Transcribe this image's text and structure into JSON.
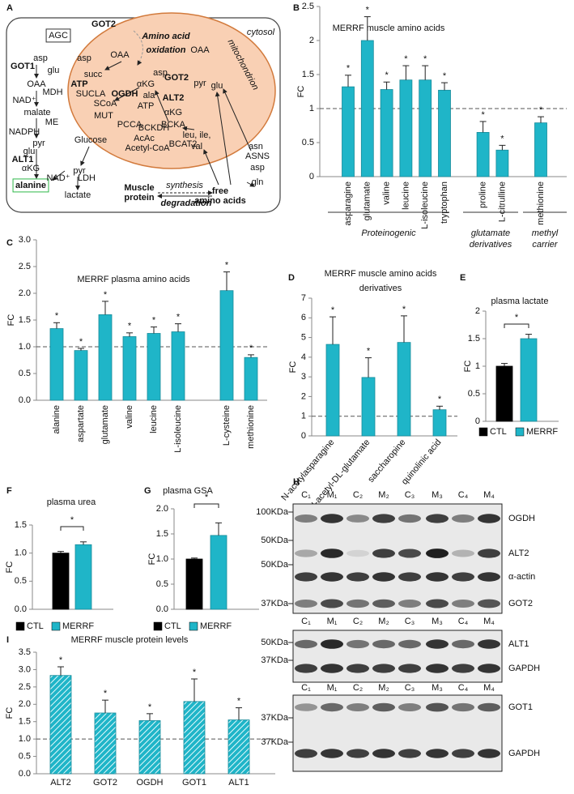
{
  "diagram": {
    "panel_label": "A",
    "labels": [
      "cytosol",
      "mitochondrion",
      "Amino acid",
      "oxidation",
      "GOT2",
      "AGC",
      "asp",
      "glu",
      "GOT1",
      "OAA",
      "MDH",
      "NAD⁺",
      "malate",
      "ME",
      "NADPH",
      "pyr",
      "glu",
      "ALT1",
      "αKG",
      "alanine",
      "NAD⁺",
      "LDH",
      "pyr",
      "Glucose",
      "lactate",
      "asp",
      "OAA",
      "succ",
      "ATP",
      "SUCLA",
      "SCoA",
      "OGDH",
      "αKG",
      "ATP",
      "MUT",
      "PCCA",
      "BCKDH",
      "AcAc",
      "Acetyl-CoA",
      "OAA",
      "asp",
      "GOT2",
      "pyr",
      "ala",
      "ALT2",
      "glu",
      "αKG",
      "BCKA",
      "BCAT2",
      "leu, ile,",
      "val",
      "asn",
      "ASNS",
      "asp",
      "gln",
      "free",
      "amino acids",
      "Muscle",
      "protein",
      "synthesis",
      "degradation"
    ]
  },
  "chart_data": [
    {
      "type": "bar",
      "panel_label": "B",
      "title": "MERRF muscle amino acids",
      "ylabel": "FC",
      "categories": [
        "asparagine",
        "glutamate",
        "valine",
        "leucine",
        "L-isoleucine",
        "tryptophan",
        null,
        "proline",
        "L-citrulline",
        null,
        "methionine"
      ],
      "values": [
        1.32,
        2.0,
        1.28,
        1.42,
        1.42,
        1.27,
        null,
        0.65,
        0.39,
        null,
        0.79
      ],
      "errors": [
        0.17,
        0.35,
        0.11,
        0.21,
        0.21,
        0.11,
        null,
        0.16,
        0.07,
        null,
        0.09
      ],
      "sig_labels": [
        "*",
        "*",
        "*",
        "*",
        "*",
        "*",
        null,
        "*",
        "*",
        null,
        "*"
      ],
      "groups": [
        [
          "Proteinogenic"
        ],
        [
          "glutamate",
          "derivatives"
        ],
        [
          "methyl",
          "carrier"
        ]
      ],
      "color": "#1fb5c8",
      "ylim": [
        0,
        2.5
      ],
      "yticks": [
        0,
        0.5,
        1,
        1.5,
        2,
        2.5
      ],
      "reference_line": 1
    },
    {
      "type": "bar",
      "panel_label": "C",
      "title": "MERRF plasma amino acids",
      "ylabel": "FC",
      "categories": [
        "alanine",
        "aspartate",
        "glutamate",
        "valine",
        "leucine",
        "L-isoleucine",
        null,
        "L-cysteine",
        "methionine"
      ],
      "values": [
        1.34,
        0.93,
        1.6,
        1.19,
        1.25,
        1.28,
        null,
        2.05,
        0.8
      ],
      "errors": [
        0.11,
        0.04,
        0.25,
        0.07,
        0.12,
        0.15,
        null,
        0.35,
        0.05
      ],
      "sig_labels": [
        "*",
        "*",
        "*",
        "*",
        "*",
        "*",
        null,
        "*",
        "*"
      ],
      "color": "#1fb5c8",
      "ylim": [
        0,
        3.0
      ],
      "yticks": [
        {
          "value": 0,
          "label": "0.0"
        },
        {
          "value": 0.5,
          "label": "0.5"
        },
        {
          "value": 1,
          "label": "1.0"
        },
        {
          "value": 1.5,
          "label": "1.5"
        },
        {
          "value": 2,
          "label": "2.0"
        },
        {
          "value": 2.5,
          "label": "2.5"
        },
        {
          "value": 3,
          "label": "3.0"
        }
      ],
      "reference_line": 1
    },
    {
      "type": "bar",
      "panel_label": "D",
      "title": [
        "MERRF muscle amino acids",
        "derivatives"
      ],
      "ylabel": "FC",
      "categories": [
        "N-acetylasparagine",
        "N-acetyl-DL-glutamate",
        "saccharopine",
        "quinolinic acid"
      ],
      "values": [
        4.65,
        2.97,
        4.75,
        1.33
      ],
      "errors": [
        1.4,
        1.0,
        1.35,
        0.18
      ],
      "sig_labels": [
        "*",
        "*",
        "*",
        "*"
      ],
      "color": "#1fb5c8",
      "ylim": [
        0,
        7
      ],
      "yticks": [
        0,
        1,
        2,
        3,
        4,
        5,
        6,
        7
      ],
      "reference_line": 1
    },
    {
      "type": "bar",
      "panel_label": "E",
      "title": "plasma lactate",
      "ylabel": "FC",
      "categories": [
        "CTL",
        "MERRF"
      ],
      "values": [
        1.0,
        1.5
      ],
      "errors": [
        0.05,
        0.08
      ],
      "colors": [
        "#000000",
        "#1fb5c8"
      ],
      "legend": true,
      "sig_label": "*",
      "ylim": [
        0,
        2
      ],
      "yticks": [
        0,
        0.5,
        1,
        1.5,
        2
      ]
    },
    {
      "type": "bar",
      "panel_label": "F",
      "title": "plasma urea",
      "ylabel": "FC",
      "categories": [
        "CTL",
        "MERRF"
      ],
      "values": [
        1.0,
        1.15
      ],
      "errors": [
        0.03,
        0.05
      ],
      "colors": [
        "#000000",
        "#1fb5c8"
      ],
      "legend": true,
      "sig_label": "*",
      "ylim": [
        0,
        1.5
      ],
      "yticks": [
        {
          "value": 0,
          "label": "0.0"
        },
        {
          "value": 0.5,
          "label": "0.5"
        },
        {
          "value": 1,
          "label": "1.0"
        },
        {
          "value": 1.5,
          "label": "1.5"
        }
      ]
    },
    {
      "type": "bar",
      "panel_label": "G",
      "title": "plasma GSA",
      "ylabel": "FC",
      "categories": [
        "CTL",
        "MERRF"
      ],
      "values": [
        1.0,
        1.47
      ],
      "errors": [
        0.02,
        0.25
      ],
      "colors": [
        "#000000",
        "#1fb5c8"
      ],
      "legend": true,
      "sig_label": "*",
      "ylim": [
        0,
        2.0
      ],
      "yticks": [
        {
          "value": 0,
          "label": "0.0"
        },
        {
          "value": 0.5,
          "label": "0.5"
        },
        {
          "value": 1,
          "label": "1.0"
        },
        {
          "value": 1.5,
          "label": "1.5"
        },
        {
          "value": 2,
          "label": "2.0"
        }
      ]
    },
    {
      "type": "bar",
      "panel_label": "I",
      "title": "MERRF muscle protein levels",
      "ylabel": "FC",
      "categories": [
        "ALT2",
        "GOT2",
        "OGDH",
        "GOT1",
        "ALT1"
      ],
      "values": [
        2.83,
        1.75,
        1.53,
        2.08,
        1.55
      ],
      "errors": [
        0.25,
        0.37,
        0.2,
        0.65,
        0.35
      ],
      "sig_labels": [
        "*",
        "*",
        "*",
        "*",
        "*"
      ],
      "color": "#1fb5c8",
      "hatch": true,
      "ylim": [
        0,
        3.5
      ],
      "yticks": [
        {
          "value": 0,
          "label": "0.0"
        },
        {
          "value": 0.5,
          "label": "0.5"
        },
        {
          "value": 1,
          "label": "1.0"
        },
        {
          "value": 1.5,
          "label": "1.5"
        },
        {
          "value": 2,
          "label": "2.0"
        },
        {
          "value": 2.5,
          "label": "2.5"
        },
        {
          "value": 3,
          "label": "3.0"
        },
        {
          "value": 3.5,
          "label": "3.5"
        }
      ],
      "reference_line": 1
    }
  ],
  "blot": {
    "panel_label": "H",
    "membranes": [
      {
        "lanes": [
          "C₁",
          "M₁",
          "C₂",
          "M₂",
          "C₃",
          "M₃",
          "C₄",
          "M₄"
        ],
        "markers": [
          "100KDa",
          "50KDa",
          "50KDa",
          "37KDa"
        ],
        "proteins": [
          "OGDH",
          "ALT2",
          "α-actin",
          "GOT2"
        ]
      },
      {
        "lanes": [
          "C₁",
          "M₁",
          "C₂",
          "M₂",
          "C₃",
          "M₃",
          "C₄",
          "M₄"
        ],
        "markers": [
          "50KDa",
          "37KDa"
        ],
        "proteins": [
          "ALT1",
          "GAPDH"
        ]
      },
      {
        "lanes": [
          "C₁",
          "M₁",
          "C₂",
          "M₂",
          "C₃",
          "M₃",
          "C₄",
          "M₄"
        ],
        "markers": [
          "37KDa",
          "37KDa"
        ],
        "proteins": [
          "GOT1",
          "GAPDH"
        ]
      }
    ]
  }
}
